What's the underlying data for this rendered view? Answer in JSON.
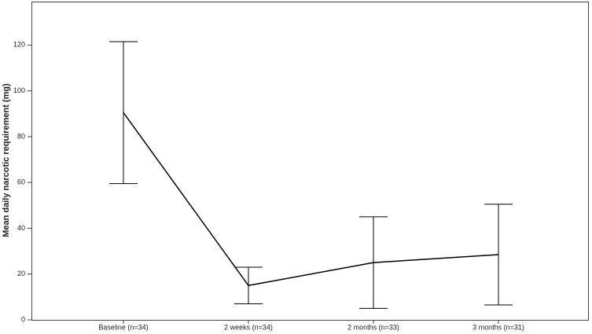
{
  "chart_data": {
    "type": "line",
    "y_label": "Mean daily narcotic requirement (mg)",
    "categories": [
      "Baseline (n=34)",
      "2 weeks (n=34)",
      "2 months (n=33)",
      "3 months (n=31)"
    ],
    "values": [
      90.5,
      15,
      25,
      28.5
    ],
    "errors": [
      31,
      8,
      20,
      22
    ],
    "color": "#000000",
    "ylim": [
      0,
      139
    ],
    "yticks": [
      0,
      20,
      40,
      60,
      80,
      100,
      120
    ]
  }
}
